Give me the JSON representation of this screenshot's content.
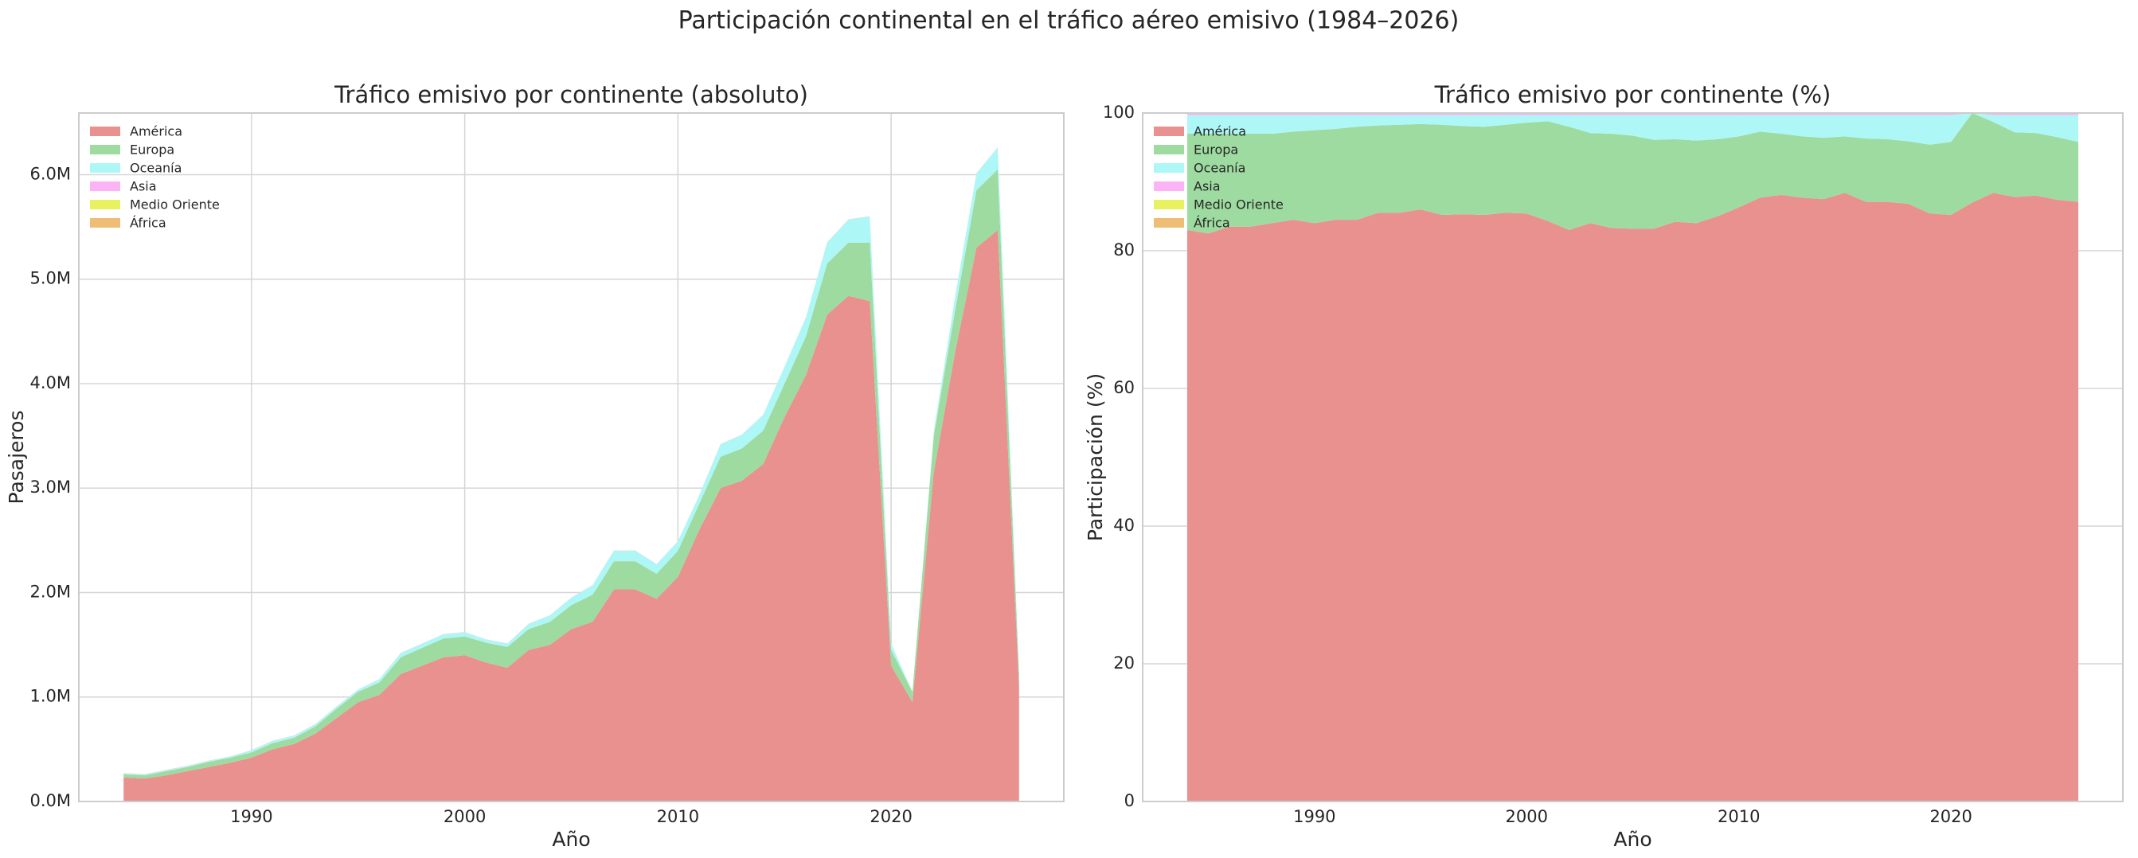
{
  "title": "Participación continental en el tráfico aéreo emisivo (1984–2026)",
  "chart_data": [
    {
      "type": "area",
      "stacked": true,
      "title": "Tráfico emisivo por continente (absoluto)",
      "x_label": "Año",
      "y_label": "Pasajeros",
      "legend": "upper left",
      "grid": true,
      "x": [
        1984,
        1985,
        1986,
        1987,
        1988,
        1989,
        1990,
        1991,
        1992,
        1993,
        1994,
        1995,
        1996,
        1997,
        1998,
        1999,
        2000,
        2001,
        2002,
        2003,
        2004,
        2005,
        2006,
        2007,
        2008,
        2009,
        2010,
        2011,
        2012,
        2013,
        2014,
        2015,
        2016,
        2017,
        2018,
        2019,
        2020,
        2021,
        2022,
        2023,
        2024,
        2025,
        2026
      ],
      "xlim": [
        1981.9,
        2028.1
      ],
      "xticks": [
        1990,
        2000,
        2010,
        2020
      ],
      "ylim": [
        0,
        6590000
      ],
      "yticks": [
        {
          "value": 0,
          "label": "0.0M"
        },
        {
          "value": 1000000,
          "label": "1.0M"
        },
        {
          "value": 2000000,
          "label": "2.0M"
        },
        {
          "value": 3000000,
          "label": "3.0M"
        },
        {
          "value": 4000000,
          "label": "4.0M"
        },
        {
          "value": 5000000,
          "label": "5.0M"
        },
        {
          "value": 6000000,
          "label": "6.0M"
        }
      ],
      "series": [
        {
          "name": "América",
          "color": "#e8918e",
          "values": [
            230000,
            220000,
            250000,
            290000,
            330000,
            370000,
            420000,
            500000,
            550000,
            650000,
            800000,
            950000,
            1020000,
            1220000,
            1300000,
            1380000,
            1400000,
            1330000,
            1280000,
            1450000,
            1500000,
            1650000,
            1720000,
            2030000,
            2030000,
            1940000,
            2150000,
            2600000,
            3000000,
            3070000,
            3230000,
            3680000,
            4080000,
            4660000,
            4840000,
            4790000,
            1300000,
            950000,
            3150000,
            4300000,
            5300000,
            5470000,
            1100000
          ]
        },
        {
          "name": "Europa",
          "color": "#9edba0",
          "values": [
            30000,
            30000,
            40000,
            40000,
            50000,
            50000,
            50000,
            60000,
            60000,
            70000,
            90000,
            100000,
            120000,
            160000,
            170000,
            180000,
            180000,
            190000,
            200000,
            200000,
            220000,
            230000,
            260000,
            270000,
            270000,
            240000,
            250000,
            250000,
            300000,
            310000,
            320000,
            320000,
            370000,
            490000,
            510000,
            560000,
            150000,
            100000,
            350000,
            400000,
            550000,
            580000,
            100000
          ]
        },
        {
          "name": "Oceanía",
          "color": "#aef7f7",
          "values": [
            10000,
            10000,
            10000,
            10000,
            10000,
            10000,
            20000,
            20000,
            20000,
            20000,
            20000,
            20000,
            30000,
            40000,
            40000,
            40000,
            40000,
            30000,
            30000,
            50000,
            60000,
            70000,
            90000,
            100000,
            100000,
            90000,
            90000,
            80000,
            120000,
            130000,
            150000,
            160000,
            180000,
            200000,
            220000,
            250000,
            60000,
            0,
            40000,
            130000,
            160000,
            210000,
            60000
          ]
        },
        {
          "name": "Asia",
          "color": "#fbb3f6",
          "values": [
            2000,
            2000,
            2000,
            2000,
            2000,
            2000,
            2000,
            2000,
            2000,
            2000,
            2000,
            2000,
            2000,
            2000,
            2000,
            2000,
            2000,
            2000,
            2000,
            2000,
            2000,
            2000,
            2000,
            2000,
            2000,
            2000,
            2000,
            2000,
            2000,
            2000,
            2000,
            2000,
            2000,
            2000,
            2000,
            2000,
            2000,
            0,
            2000,
            2000,
            2000,
            2000,
            2000
          ]
        },
        {
          "name": "Medio Oriente",
          "color": "#e8f260",
          "values": [
            300,
            300,
            300,
            300,
            300,
            300,
            300,
            300,
            300,
            300,
            300,
            300,
            300,
            300,
            300,
            300,
            300,
            300,
            300,
            300,
            300,
            300,
            300,
            300,
            300,
            300,
            300,
            300,
            300,
            300,
            300,
            300,
            300,
            300,
            300,
            300,
            300,
            0,
            300,
            300,
            300,
            300,
            300
          ]
        },
        {
          "name": "África",
          "color": "#efbd75",
          "values": [
            300,
            300,
            300,
            300,
            300,
            300,
            300,
            300,
            300,
            300,
            300,
            300,
            300,
            300,
            300,
            300,
            300,
            300,
            300,
            300,
            300,
            300,
            300,
            300,
            300,
            300,
            300,
            300,
            300,
            300,
            300,
            300,
            300,
            300,
            300,
            300,
            300,
            0,
            300,
            300,
            300,
            300,
            300
          ]
        }
      ]
    },
    {
      "type": "area",
      "stacked": true,
      "title": "Tráfico emisivo por continente (%)",
      "x_label": "Año",
      "y_label": "Participación (%)",
      "legend": "upper left",
      "grid": true,
      "x": [
        1984,
        1985,
        1986,
        1987,
        1988,
        1989,
        1990,
        1991,
        1992,
        1993,
        1994,
        1995,
        1996,
        1997,
        1998,
        1999,
        2000,
        2001,
        2002,
        2003,
        2004,
        2005,
        2006,
        2007,
        2008,
        2009,
        2010,
        2011,
        2012,
        2013,
        2014,
        2015,
        2016,
        2017,
        2018,
        2019,
        2020,
        2021,
        2022,
        2023,
        2024,
        2025,
        2026
      ],
      "xlim": [
        1981.9,
        2028.1
      ],
      "xticks": [
        1990,
        2000,
        2010,
        2020
      ],
      "ylim": [
        0,
        100
      ],
      "yticks": [
        0,
        20,
        40,
        60,
        80,
        100
      ],
      "series": [
        {
          "name": "América",
          "color": "#e8918e",
          "values": [
            83,
            82.5,
            83.5,
            83.5,
            84,
            84.5,
            84,
            84.5,
            84.5,
            85.5,
            85.5,
            86,
            85.2,
            85.3,
            85.2,
            85.5,
            85.4,
            84.3,
            83,
            84,
            83.3,
            83.2,
            83.2,
            84.2,
            84,
            85,
            86.3,
            87.7,
            88.1,
            87.7,
            87.5,
            88.4,
            87.1,
            87.1,
            86.8,
            85.4,
            85.2,
            87,
            88.4,
            87.8,
            88,
            87.4,
            87.1
          ]
        },
        {
          "name": "Europa",
          "color": "#9edba0",
          "values": [
            14,
            14.5,
            13.5,
            13.5,
            13,
            12.8,
            13.5,
            13.2,
            13.5,
            12.7,
            12.8,
            12.4,
            13.1,
            12.8,
            12.8,
            12.8,
            13.2,
            14.5,
            15,
            13.1,
            13.7,
            13.5,
            12.9,
            12,
            12,
            11.2,
            10.3,
            9.6,
            8.9,
            8.9,
            8.9,
            8.2,
            9.2,
            9.1,
            9.1,
            10,
            10.6,
            13,
            10.3,
            9.4,
            9.1,
            9.1,
            8.7
          ]
        },
        {
          "name": "Oceanía",
          "color": "#aef7f7",
          "values": [
            2.7,
            2.7,
            2.7,
            2.7,
            2.7,
            2.4,
            2.2,
            2,
            1.7,
            1.5,
            1.4,
            1.3,
            1.4,
            1.6,
            1.7,
            1.4,
            1.1,
            0.9,
            1.7,
            2.6,
            2.7,
            3,
            3.6,
            3.5,
            3.7,
            3.5,
            3.1,
            2.4,
            2.7,
            3.1,
            3.3,
            3.1,
            3.4,
            3.5,
            3.8,
            4.3,
            3.9,
            0,
            1,
            2.5,
            2.6,
            3.2,
            3.9
          ]
        },
        {
          "name": "Asia",
          "color": "#fbb3f6",
          "values": [
            0.2,
            0.2,
            0.2,
            0.2,
            0.2,
            0.2,
            0.2,
            0.2,
            0.2,
            0.2,
            0.2,
            0.2,
            0.2,
            0.2,
            0.2,
            0.2,
            0.2,
            0.2,
            0.2,
            0.2,
            0.2,
            0.2,
            0.2,
            0.2,
            0.2,
            0.2,
            0.2,
            0.2,
            0.2,
            0.2,
            0.2,
            0.2,
            0.2,
            0.2,
            0.2,
            0.2,
            0.2,
            0,
            0.2,
            0.2,
            0.2,
            0.2,
            0.2
          ]
        },
        {
          "name": "Medio Oriente",
          "color": "#e8f260",
          "values": [
            0.05,
            0.05,
            0.05,
            0.05,
            0.05,
            0.05,
            0.05,
            0.05,
            0.05,
            0.05,
            0.05,
            0.05,
            0.05,
            0.05,
            0.05,
            0.05,
            0.05,
            0.05,
            0.05,
            0.05,
            0.05,
            0.05,
            0.05,
            0.05,
            0.05,
            0.05,
            0.05,
            0.05,
            0.05,
            0.05,
            0.05,
            0.05,
            0.05,
            0.05,
            0.05,
            0.05,
            0.05,
            0,
            0.05,
            0.05,
            0.05,
            0.05,
            0.05
          ]
        },
        {
          "name": "África",
          "color": "#efbd75",
          "values": [
            0.05,
            0.05,
            0.05,
            0.05,
            0.05,
            0.05,
            0.05,
            0.05,
            0.05,
            0.05,
            0.05,
            0.05,
            0.05,
            0.05,
            0.05,
            0.05,
            0.05,
            0.05,
            0.05,
            0.05,
            0.05,
            0.05,
            0.05,
            0.05,
            0.05,
            0.05,
            0.05,
            0.05,
            0.05,
            0.05,
            0.05,
            0.05,
            0.05,
            0.05,
            0.05,
            0.05,
            0.05,
            0,
            0.05,
            0.05,
            0.05,
            0.05,
            0.05
          ]
        }
      ]
    }
  ]
}
